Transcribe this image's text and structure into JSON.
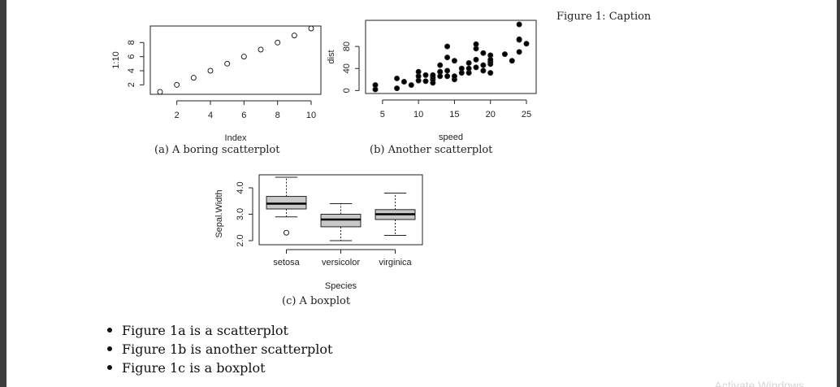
{
  "margin_caption": "Figure 1: Caption",
  "subcaptions": {
    "a": "(a) A boring scatterplot",
    "b": "(b) Another scatterplot",
    "c": "(c) A boxplot"
  },
  "bullets": [
    "Figure 1a is a scatterplot",
    "Figure 1b is another scatterplot",
    "Figure 1c is a boxplot"
  ],
  "watermark": "Activate Windows",
  "colors": {
    "text": "#222222",
    "box_fill": "#c8c8c8",
    "page_bg": "#ffffff",
    "frame_bg": "#3c3c3c"
  },
  "chart_data": [
    {
      "type": "scatter",
      "marker": "open-circle",
      "xlabel": "Index",
      "ylabel": "1:10",
      "x": [
        1,
        2,
        3,
        4,
        5,
        6,
        7,
        8,
        9,
        10
      ],
      "y": [
        1,
        2,
        3,
        4,
        5,
        6,
        7,
        8,
        9,
        10
      ],
      "xlim": [
        1,
        10
      ],
      "ylim": [
        1,
        10
      ],
      "xticks": [
        2,
        4,
        6,
        8,
        10
      ],
      "yticks": [
        2,
        4,
        6,
        8
      ],
      "grid": false
    },
    {
      "type": "scatter",
      "marker": "filled-circle",
      "xlabel": "speed",
      "ylabel": "dist",
      "x": [
        4,
        4,
        7,
        7,
        8,
        9,
        10,
        10,
        10,
        11,
        11,
        12,
        12,
        12,
        12,
        13,
        13,
        13,
        13,
        14,
        14,
        14,
        14,
        15,
        15,
        15,
        16,
        16,
        17,
        17,
        17,
        18,
        18,
        18,
        18,
        19,
        19,
        19,
        20,
        20,
        20,
        20,
        20,
        22,
        23,
        24,
        24,
        24,
        24,
        25
      ],
      "y": [
        2,
        10,
        4,
        22,
        16,
        10,
        18,
        26,
        34,
        17,
        28,
        14,
        20,
        24,
        28,
        26,
        34,
        34,
        46,
        26,
        36,
        60,
        80,
        20,
        26,
        54,
        32,
        40,
        32,
        40,
        50,
        42,
        56,
        76,
        84,
        36,
        46,
        68,
        32,
        48,
        52,
        56,
        64,
        66,
        54,
        70,
        92,
        93,
        120,
        85
      ],
      "xlim": [
        4,
        25
      ],
      "ylim": [
        2,
        120
      ],
      "xticks": [
        5,
        10,
        15,
        20,
        25
      ],
      "yticks": [
        0,
        40,
        80
      ],
      "grid": false
    },
    {
      "type": "boxplot",
      "xlabel": "Species",
      "ylabel": "Sepal.Width",
      "categories": [
        "setosa",
        "versicolor",
        "virginica"
      ],
      "boxes": [
        {
          "min": 2.9,
          "q1": 3.2,
          "median": 3.4,
          "q3": 3.675,
          "max": 4.4,
          "outliers": [
            2.3
          ]
        },
        {
          "min": 2.0,
          "q1": 2.525,
          "median": 2.8,
          "q3": 3.0,
          "max": 3.4,
          "outliers": []
        },
        {
          "min": 2.2,
          "q1": 2.8,
          "median": 3.0,
          "q3": 3.175,
          "max": 3.8,
          "outliers": []
        }
      ],
      "ylim": [
        2.0,
        4.4
      ],
      "yticks": [
        "2.0",
        "3.0",
        "4.0"
      ],
      "grid": false
    }
  ]
}
